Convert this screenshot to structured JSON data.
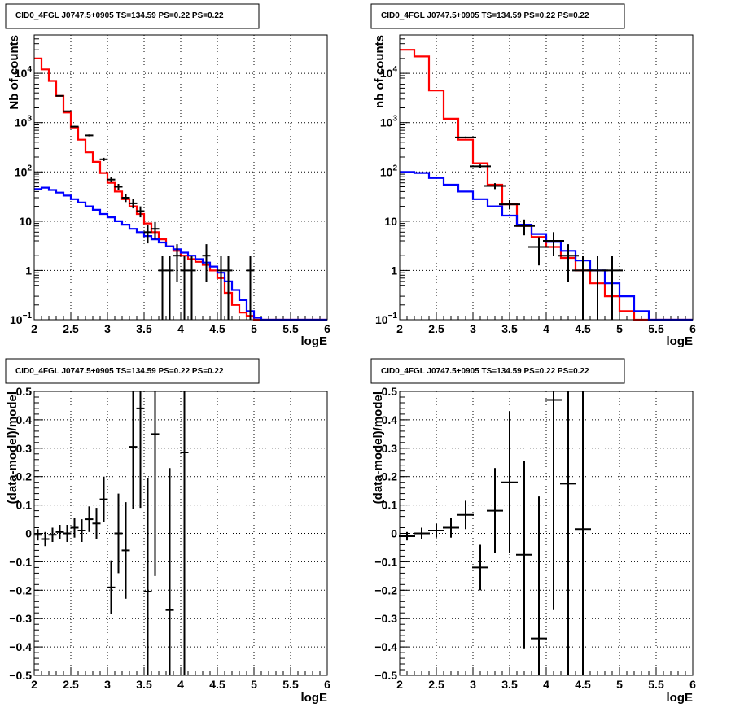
{
  "chart_data": [
    {
      "id": "top-left",
      "type": "line",
      "title": "CID0_4FGL J0747.5+0905 TS=134.59 PS=0.22 PS=0.22",
      "xlabel": "logE",
      "ylabel": "Nb of counts",
      "xlim": [
        2,
        6
      ],
      "ylim": [
        0.1,
        60000
      ],
      "yscale": "log",
      "grid": true,
      "xticks": [
        "2",
        "2.5",
        "3",
        "3.5",
        "4",
        "4.5",
        "5",
        "5.5",
        "6"
      ],
      "yticks": [
        {
          "v": 0.1,
          "base": "10",
          "exp": "−1"
        },
        {
          "v": 1,
          "label": "1"
        },
        {
          "v": 10,
          "label": "10"
        },
        {
          "v": 100,
          "base": "10",
          "exp": "2"
        },
        {
          "v": 1000,
          "base": "10",
          "exp": "3"
        },
        {
          "v": 10000,
          "base": "10",
          "exp": "4"
        }
      ],
      "series": [
        {
          "kind": "step",
          "color": "#ff0000",
          "edges": [
            2.0,
            2.1,
            2.2,
            2.3,
            2.4,
            2.5,
            2.6,
            2.7,
            2.8,
            2.9,
            3.0,
            3.1,
            3.2,
            3.3,
            3.4,
            3.5,
            3.6,
            3.7,
            3.8,
            3.9,
            4.0,
            4.1,
            4.2,
            4.3,
            4.4,
            4.5,
            4.6,
            4.7,
            4.8,
            4.9,
            5.0,
            5.1,
            5.2,
            5.3,
            5.4,
            5.5,
            5.6,
            5.7,
            5.8,
            5.9,
            6.0
          ],
          "values": [
            20000,
            12000,
            7000,
            3500,
            1600,
            800,
            450,
            250,
            160,
            95,
            60,
            40,
            28,
            20,
            14,
            9,
            6,
            4.3,
            3.1,
            2.5,
            2.0,
            1.7,
            1.5,
            1.3,
            1.0,
            0.7,
            0.35,
            0.2,
            0.14,
            0.12,
            0.1,
            0.1,
            0.1,
            0.1,
            0.1,
            0.1,
            0.1,
            0.1,
            0.1,
            0.1
          ]
        },
        {
          "kind": "step",
          "color": "#0000ff",
          "edges": [
            2.0,
            2.1,
            2.2,
            2.3,
            2.4,
            2.5,
            2.6,
            2.7,
            2.8,
            2.9,
            3.0,
            3.1,
            3.2,
            3.3,
            3.4,
            3.5,
            3.6,
            3.7,
            3.8,
            3.9,
            4.0,
            4.1,
            4.2,
            4.3,
            4.4,
            4.5,
            4.6,
            4.7,
            4.8,
            4.9,
            5.0,
            5.1,
            5.2,
            5.3,
            5.4,
            5.5,
            5.6,
            5.7,
            5.8,
            5.9,
            6.0
          ],
          "values": [
            45,
            48,
            43,
            38,
            33,
            28,
            24,
            20,
            17,
            14,
            12,
            10,
            8.5,
            7,
            6,
            5,
            4.3,
            3.7,
            3.1,
            2.7,
            2.3,
            2.0,
            1.7,
            1.45,
            1.2,
            0.9,
            0.6,
            0.4,
            0.25,
            0.15,
            0.11,
            0.1,
            0.1,
            0.1,
            0.1,
            0.1,
            0.1,
            0.1,
            0.1,
            0.1
          ]
        },
        {
          "kind": "points",
          "color": "#000000",
          "points": [
            {
              "x": 2.35,
              "y": 3500
            },
            {
              "x": 2.45,
              "y": 1700
            },
            {
              "x": 2.55,
              "y": 830
            },
            {
              "x": 2.75,
              "y": 550
            },
            {
              "x": 2.95,
              "y": 180
            },
            {
              "x": 3.05,
              "y": 70
            },
            {
              "x": 3.15,
              "y": 50
            },
            {
              "x": 3.25,
              "y": 30
            },
            {
              "x": 3.35,
              "y": 23
            },
            {
              "x": 3.45,
              "y": 16
            },
            {
              "x": 3.55,
              "y": 6
            },
            {
              "x": 3.65,
              "y": 7
            },
            {
              "x": 3.75,
              "y": 1
            },
            {
              "x": 3.85,
              "y": 1
            },
            {
              "x": 3.95,
              "y": 2
            },
            {
              "x": 4.05,
              "y": 1
            },
            {
              "x": 4.15,
              "y": 1
            },
            {
              "x": 4.35,
              "y": 2
            },
            {
              "x": 4.55,
              "y": 1
            },
            {
              "x": 4.65,
              "y": 1
            },
            {
              "x": 4.95,
              "y": 1
            }
          ]
        }
      ]
    },
    {
      "id": "top-right",
      "type": "line",
      "title": "CID0_4FGL J0747.5+0905 TS=134.59 PS=0.22 PS=0.22",
      "xlabel": "logE",
      "ylabel": "nb of counts",
      "xlim": [
        2,
        6
      ],
      "ylim": [
        0.1,
        60000
      ],
      "yscale": "log",
      "grid": true,
      "xticks": [
        "2",
        "2.5",
        "3",
        "3.5",
        "4",
        "4.5",
        "5",
        "5.5",
        "6"
      ],
      "yticks": [
        {
          "v": 0.1,
          "base": "10",
          "exp": "−1"
        },
        {
          "v": 1,
          "label": "1"
        },
        {
          "v": 10,
          "label": "10"
        },
        {
          "v": 100,
          "base": "10",
          "exp": "2"
        },
        {
          "v": 1000,
          "base": "10",
          "exp": "3"
        },
        {
          "v": 10000,
          "base": "10",
          "exp": "4"
        }
      ],
      "series": [
        {
          "kind": "step",
          "color": "#ff0000",
          "edges": [
            2.0,
            2.2,
            2.4,
            2.6,
            2.8,
            3.0,
            3.2,
            3.4,
            3.6,
            3.8,
            4.0,
            4.2,
            4.4,
            4.6,
            4.8,
            5.0,
            5.2,
            5.4,
            5.6,
            5.8,
            6.0
          ],
          "values": [
            30000,
            22000,
            4500,
            1200,
            450,
            150,
            55,
            22,
            8,
            4.8,
            3.0,
            1.8,
            1.0,
            0.55,
            0.3,
            0.15,
            0.1,
            0.1,
            0.1,
            0.1
          ]
        },
        {
          "kind": "step",
          "color": "#0000ff",
          "edges": [
            2.0,
            2.2,
            2.4,
            2.6,
            2.8,
            3.0,
            3.2,
            3.4,
            3.6,
            3.8,
            4.0,
            4.2,
            4.4,
            4.6,
            4.8,
            5.0,
            5.2,
            5.4,
            5.6,
            5.8,
            6.0
          ],
          "values": [
            100,
            95,
            75,
            55,
            40,
            28,
            20,
            13,
            8.5,
            5.5,
            3.8,
            2.5,
            1.6,
            1.0,
            0.55,
            0.3,
            0.15,
            0.1,
            0.1,
            0.1
          ]
        },
        {
          "kind": "points",
          "color": "#000000",
          "points": [
            {
              "x": 2.9,
              "y": 500
            },
            {
              "x": 3.1,
              "y": 130
            },
            {
              "x": 3.3,
              "y": 52
            },
            {
              "x": 3.5,
              "y": 22
            },
            {
              "x": 3.7,
              "y": 8
            },
            {
              "x": 3.9,
              "y": 3
            },
            {
              "x": 4.1,
              "y": 4
            },
            {
              "x": 4.3,
              "y": 2
            },
            {
              "x": 4.5,
              "y": 1
            },
            {
              "x": 4.7,
              "y": 1
            },
            {
              "x": 4.9,
              "y": 1
            }
          ]
        }
      ]
    },
    {
      "id": "bottom-left",
      "type": "scatter",
      "title": "CID0_4FGL J0747.5+0905 TS=134.59 PS=0.22 PS=0.22",
      "xlabel": "logE",
      "ylabel": "(data-model)/model",
      "xlim": [
        2,
        6
      ],
      "ylim": [
        -0.5,
        0.5
      ],
      "yscale": "linear",
      "grid": true,
      "xticks": [
        "2",
        "2.5",
        "3",
        "3.5",
        "4",
        "4.5",
        "5",
        "5.5",
        "6"
      ],
      "yticks": [
        {
          "v": -0.5,
          "label": "−0.5"
        },
        {
          "v": -0.4,
          "label": "−0.4"
        },
        {
          "v": -0.3,
          "label": "−0.3"
        },
        {
          "v": -0.2,
          "label": "−0.2"
        },
        {
          "v": -0.1,
          "label": "−0.1"
        },
        {
          "v": 0,
          "label": "0"
        },
        {
          "v": 0.1,
          "label": "0.1"
        },
        {
          "v": 0.2,
          "label": "0.2"
        },
        {
          "v": 0.3,
          "label": "0.3"
        },
        {
          "v": 0.4,
          "label": "0.4"
        },
        {
          "v": 0.5,
          "label": "0.5"
        }
      ],
      "series": [
        {
          "kind": "points",
          "color": "#000000",
          "points": [
            {
              "x": 2.05,
              "y": -0.005,
              "err": 0.02
            },
            {
              "x": 2.15,
              "y": -0.02,
              "err": 0.025
            },
            {
              "x": 2.25,
              "y": -0.005,
              "err": 0.025
            },
            {
              "x": 2.35,
              "y": 0.005,
              "err": 0.025
            },
            {
              "x": 2.45,
              "y": 0.0,
              "err": 0.03
            },
            {
              "x": 2.55,
              "y": 0.02,
              "err": 0.035
            },
            {
              "x": 2.65,
              "y": 0.01,
              "err": 0.04
            },
            {
              "x": 2.75,
              "y": 0.05,
              "err": 0.045
            },
            {
              "x": 2.85,
              "y": 0.035,
              "err": 0.055
            },
            {
              "x": 2.95,
              "y": 0.12,
              "err": 0.08
            },
            {
              "x": 3.05,
              "y": -0.19,
              "err": 0.095
            },
            {
              "x": 3.15,
              "y": 0.0,
              "err": 0.14
            },
            {
              "x": 3.25,
              "y": -0.06,
              "err": 0.17
            },
            {
              "x": 3.35,
              "y": 0.305,
              "err": 0.22
            },
            {
              "x": 3.45,
              "y": 0.44,
              "err": 0.35
            },
            {
              "x": 3.55,
              "y": -0.205,
              "err": 0.4
            },
            {
              "x": 3.65,
              "y": 0.35,
              "err": 0.5
            },
            {
              "x": 3.85,
              "y": -0.27,
              "err": 0.5
            },
            {
              "x": 4.05,
              "y": 0.285,
              "err": 1.0
            }
          ]
        }
      ]
    },
    {
      "id": "bottom-right",
      "type": "scatter",
      "title": "CID0_4FGL J0747.5+0905 TS=134.59 PS=0.22 PS=0.22",
      "xlabel": "logE",
      "ylabel": "(data-model)/model",
      "xlim": [
        2,
        6
      ],
      "ylim": [
        -0.5,
        0.5
      ],
      "yscale": "linear",
      "grid": true,
      "xticks": [
        "2",
        "2.5",
        "3",
        "3.5",
        "4",
        "4.5",
        "5",
        "5.5",
        "6"
      ],
      "yticks": [
        {
          "v": -0.5,
          "label": "−0.5"
        },
        {
          "v": -0.4,
          "label": "−0.4"
        },
        {
          "v": -0.3,
          "label": "−0.3"
        },
        {
          "v": -0.2,
          "label": "−0.2"
        },
        {
          "v": -0.1,
          "label": "−0.1"
        },
        {
          "v": 0,
          "label": "0"
        },
        {
          "v": 0.1,
          "label": "0.1"
        },
        {
          "v": 0.2,
          "label": "0.2"
        },
        {
          "v": 0.3,
          "label": "0.3"
        },
        {
          "v": 0.4,
          "label": "0.4"
        },
        {
          "v": 0.5,
          "label": "0.5"
        }
      ],
      "series": [
        {
          "kind": "points",
          "color": "#000000",
          "points": [
            {
              "x": 2.1,
              "y": -0.01,
              "err": 0.015
            },
            {
              "x": 2.3,
              "y": 0.0,
              "err": 0.02
            },
            {
              "x": 2.5,
              "y": 0.01,
              "err": 0.025
            },
            {
              "x": 2.7,
              "y": 0.02,
              "err": 0.035
            },
            {
              "x": 2.9,
              "y": 0.065,
              "err": 0.05
            },
            {
              "x": 3.1,
              "y": -0.12,
              "err": 0.08
            },
            {
              "x": 3.3,
              "y": 0.08,
              "err": 0.15
            },
            {
              "x": 3.5,
              "y": 0.18,
              "err": 0.25
            },
            {
              "x": 3.7,
              "y": -0.075,
              "err": 0.33
            },
            {
              "x": 3.9,
              "y": -0.37,
              "err": 0.5
            },
            {
              "x": 4.1,
              "y": 0.47,
              "err": 0.74
            },
            {
              "x": 4.3,
              "y": 0.175,
              "err": 1.0
            },
            {
              "x": 4.5,
              "y": 0.015,
              "err": 1.0
            }
          ]
        }
      ]
    }
  ]
}
